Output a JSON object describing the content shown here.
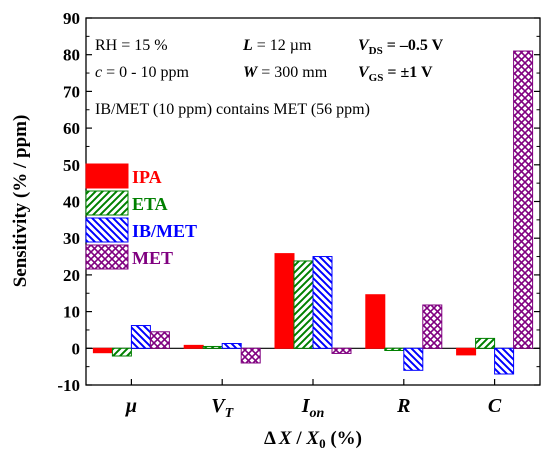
{
  "chart_data": {
    "type": "bar",
    "categories": [
      "μ",
      "V_T",
      "I_on",
      "R",
      "C"
    ],
    "category_labels": [
      {
        "main": "μ",
        "sub": ""
      },
      {
        "main": "V",
        "sub": "T"
      },
      {
        "main": "I",
        "sub": "on"
      },
      {
        "main": "R",
        "sub": ""
      },
      {
        "main": "C",
        "sub": ""
      }
    ],
    "series": [
      {
        "name": "IPA",
        "color": "#ff0000",
        "pattern": "solid",
        "values": [
          -1.2,
          0.8,
          25.8,
          14.6,
          -1.8
        ]
      },
      {
        "name": "ETA",
        "color": "#008000",
        "pattern": "diag-right",
        "values": [
          -2.1,
          0.5,
          23.8,
          -0.6,
          2.7
        ]
      },
      {
        "name": "IB/MET",
        "color": "#0000ff",
        "pattern": "diag-left",
        "values": [
          6.2,
          1.3,
          25.0,
          -6.0,
          -7.0
        ]
      },
      {
        "name": "MET",
        "color": "#800080",
        "pattern": "crosshatch",
        "values": [
          4.5,
          -4.0,
          -1.4,
          11.8,
          81.0
        ]
      }
    ],
    "ylabel": "Sensitivity (% / ppm)",
    "xlabel": {
      "delta": "Δ",
      "x": "X",
      "slash": " / ",
      "x0": "X",
      "x0sub": "0",
      "unit": " (%)"
    },
    "ylim": [
      -10,
      90
    ],
    "yticks": [
      "-10",
      "0",
      "10",
      "20",
      "30",
      "40",
      "50",
      "60",
      "70",
      "80",
      "90"
    ],
    "legend_position": "center-left",
    "annotations": {
      "rh": "RH = 15 %",
      "c_prefix": "c",
      "c_suffix": " = 0 - 10 ppm",
      "l_prefix": "L",
      "l_suffix": " = 12 µm",
      "w_prefix": "W",
      "w_suffix": " = 300 mm",
      "vds_label": "V",
      "vds_sub": "DS",
      "vds_value": " = –0.5 V",
      "vgs_label": "V",
      "vgs_sub": "GS",
      "vgs_value": " = ±1 V",
      "note": "IB/MET (10 ppm) contains MET (56 ppm)"
    }
  }
}
